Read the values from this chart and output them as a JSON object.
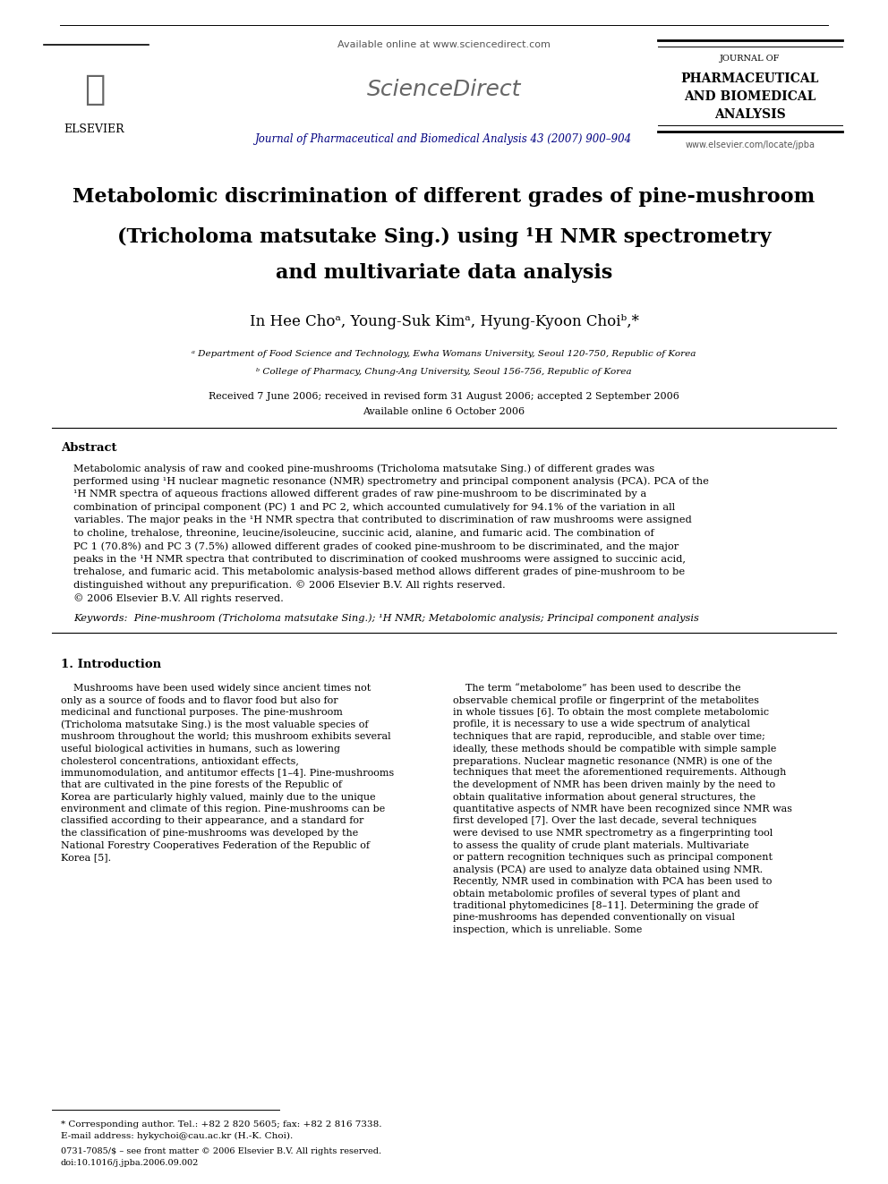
{
  "bg_color": "#ffffff",
  "header": {
    "available_online": "Available online at www.sciencedirect.com",
    "sciencedirect": "ScienceDirect",
    "journal_name": "Journal of Pharmaceutical and Biomedical Analysis 43 (2007) 900–904",
    "elsevier": "ELSEVIER",
    "journal_abbr_line1": "JOURNAL OF",
    "journal_abbr_line2": "PHARMACEUTICAL",
    "journal_abbr_line3": "AND BIOMEDICAL",
    "journal_abbr_line4": "ANALYSIS",
    "journal_url": "www.elsevier.com/locate/jpba"
  },
  "title_line1": "Metabolomic discrimination of different grades of pine-mushroom",
  "title_line2_normal": "(",
  "title_line2_italic": "Tricholoma matsutake",
  "title_line2_normal2": " Sing.) using ",
  "title_line2_superscript": "1",
  "title_line2_normal3": "H NMR spectrometry",
  "title_line3": "and multivariate data analysis",
  "authors": "In Hee Choᵃ, Young-Suk Kimᵃ, Hyung-Kyoon Choiᵇ,*",
  "affil_a": "ᵃ Department of Food Science and Technology, Ewha Womans University, Seoul 120-750, Republic of Korea",
  "affil_b": "ᵇ College of Pharmacy, Chung-Ang University, Seoul 156-756, Republic of Korea",
  "received": "Received 7 June 2006; received in revised form 31 August 2006; accepted 2 September 2006",
  "available_online2": "Available online 6 October 2006",
  "abstract_title": "Abstract",
  "abstract_text": "Metabolomic analysis of raw and cooked pine-mushrooms (Tricholoma matsutake Sing.) of different grades was performed using ¹H nuclear magnetic resonance (NMR) spectrometry and principal component analysis (PCA). PCA of the ¹H NMR spectra of aqueous fractions allowed different grades of raw pine-mushroom to be discriminated by a combination of principal component (PC) 1 and PC 2, which accounted cumulatively for 94.1% of the variation in all variables. The major peaks in the ¹H NMR spectra that contributed to discrimination of raw mushrooms were assigned to choline, trehalose, threonine, leucine/isoleucine, succinic acid, alanine, and fumaric acid. The combination of PC 1 (70.8%) and PC 3 (7.5%) allowed different grades of cooked pine-mushroom to be discriminated, and the major peaks in the ¹H NMR spectra that contributed to discrimination of cooked mushrooms were assigned to succinic acid, trehalose, and fumaric acid. This metabolomic analysis-based method allows different grades of pine-mushroom to be distinguished without any prepurification.\n© 2006 Elsevier B.V. All rights reserved.",
  "keywords": "Keywords:  Pine-mushroom (Tricholoma matsutake Sing.); ¹H NMR; Metabolomic analysis; Principal component analysis",
  "section1_title": "1. Introduction",
  "intro_left": "    Mushrooms have been used widely since ancient times not only as a source of foods and to flavor food but also for medicinal and functional purposes. The pine-mushroom (Tricholoma matsutake Sing.) is the most valuable species of mushroom throughout the world; this mushroom exhibits several useful biological activities in humans, such as lowering cholesterol concentrations, antioxidant effects, immunomodulation, and antitumor effects [1–4]. Pine-mushrooms that are cultivated in the pine forests of the Republic of Korea are particularly highly valued, mainly due to the unique environment and climate of this region. Pine-mushrooms can be classified according to their appearance, and a standard for the classification of pine-mushrooms was developed by the National Forestry Cooperatives Federation of the Republic of Korea [5].",
  "intro_right": "    The term “metabolome” has been used to describe the observable chemical profile or fingerprint of the metabolites in whole tissues [6]. To obtain the most complete metabolomic profile, it is necessary to use a wide spectrum of analytical techniques that are rapid, reproducible, and stable over time; ideally, these methods should be compatible with simple sample preparations. Nuclear magnetic resonance (NMR) is one of the techniques that meet the aforementioned requirements. Although the development of NMR has been driven mainly by the need to obtain qualitative information about general structures, the quantitative aspects of NMR have been recognized since NMR was first developed [7]. Over the last decade, several techniques were devised to use NMR spectrometry as a fingerprinting tool to assess the quality of crude plant materials. Multivariate or pattern recognition techniques such as principal component analysis (PCA) are used to analyze data obtained using NMR. Recently, NMR used in combination with PCA has been used to obtain metabolomic profiles of several types of plant and traditional phytomedicines [8–11]. Determining the grade of pine-mushrooms has depended conventionally on visual inspection, which is unreliable. Some",
  "footnote_star": "* Corresponding author. Tel.: +82 2 820 5605; fax: +82 2 816 7338.",
  "footnote_email": "E-mail address: hykychoi@cau.ac.kr (H.-K. Choi).",
  "footer_issn": "0731-7085/$ – see front matter © 2006 Elsevier B.V. All rights reserved.",
  "footer_doi": "doi:10.1016/j.jpba.2006.09.002"
}
